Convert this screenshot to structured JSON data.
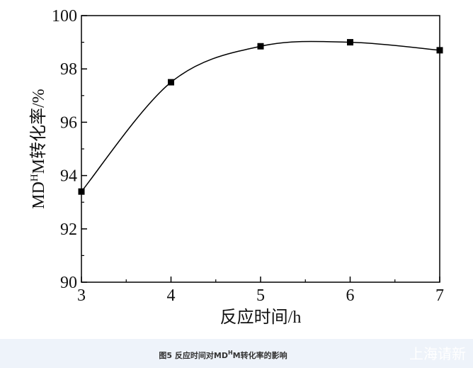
{
  "chart_data": {
    "type": "line",
    "xlabel": "反应时间/h",
    "ylabel": [
      "MD",
      "H",
      "M转化率/%"
    ],
    "x": [
      3,
      4,
      5,
      6,
      7
    ],
    "series": [
      {
        "color": "#000000",
        "values": [
          93.4,
          97.5,
          98.85,
          99.0,
          98.7
        ]
      }
    ],
    "xlim": [
      3,
      7
    ],
    "xticks": [
      3,
      4,
      5,
      6,
      7
    ],
    "ylim": [
      90,
      100
    ],
    "yticks": [
      90,
      92,
      94,
      96,
      98,
      100
    ],
    "smooth": true,
    "marker": "square"
  },
  "caption": [
    "图5 反应时间对MD",
    "H",
    "M转化率的影响"
  ],
  "watermark": "上海请新"
}
